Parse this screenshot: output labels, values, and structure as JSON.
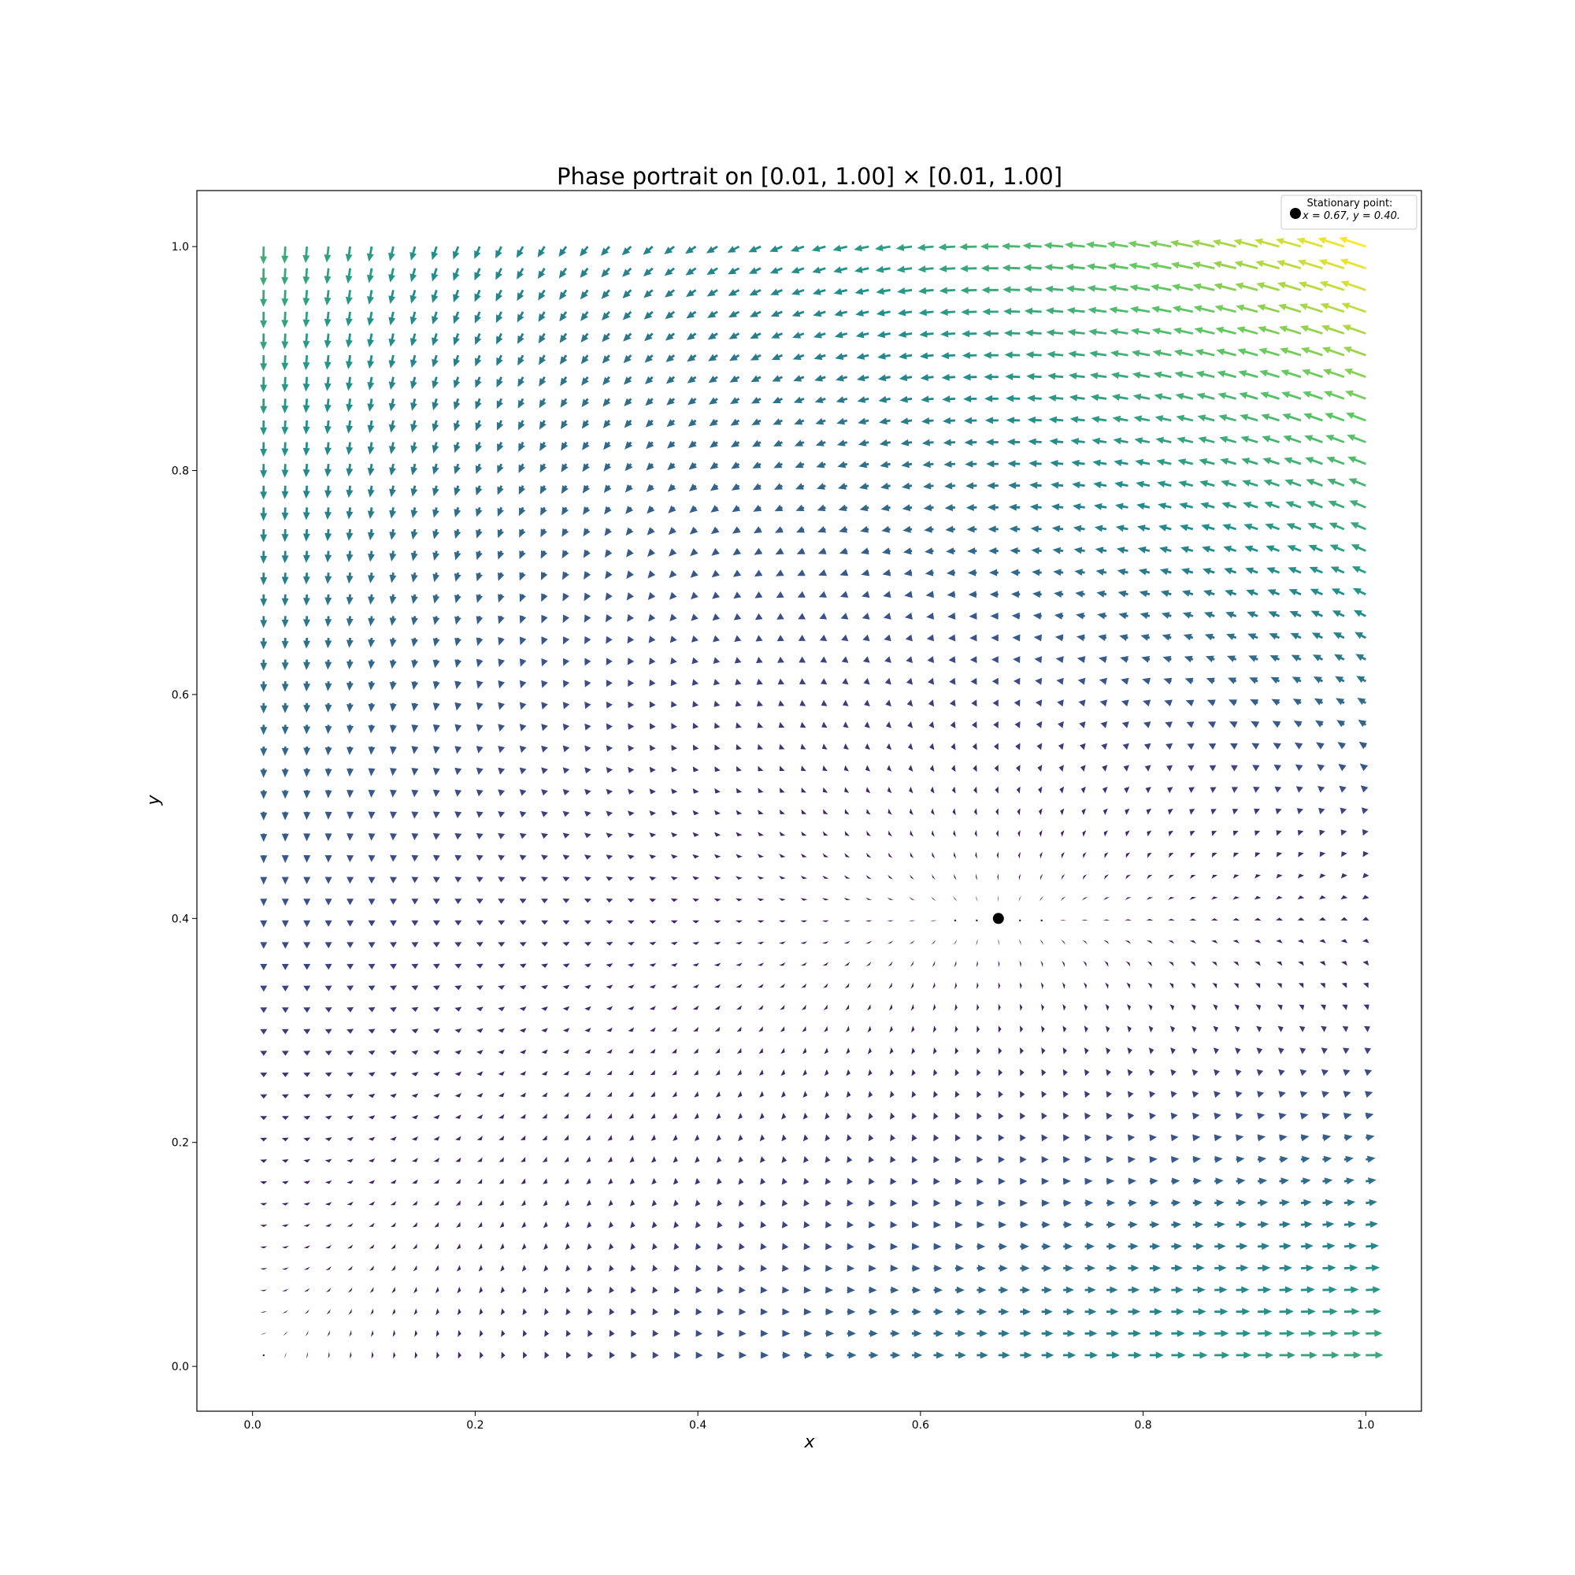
{
  "chart_data": {
    "type": "quiver",
    "title": "Phase portrait on [0.01, 1.00] × [0.01, 1.00]",
    "xlabel": "x",
    "ylabel": "y",
    "xlim": [
      -0.05,
      1.05
    ],
    "ylim": [
      -0.04,
      1.05
    ],
    "xticks": [
      "0.0",
      "0.2",
      "0.4",
      "0.6",
      "0.8",
      "1.0"
    ],
    "yticks": [
      "0.0",
      "0.2",
      "0.4",
      "0.6",
      "0.8",
      "1.0"
    ],
    "grid": false,
    "domain": {
      "x": [
        0.01,
        1.0
      ],
      "y": [
        0.01,
        1.0
      ],
      "n": 52
    },
    "colormap": [
      "#440154",
      "#3b528b",
      "#21918c",
      "#5ec962",
      "#fde725"
    ],
    "stationary_point": {
      "x": 0.67,
      "y": 0.4
    },
    "legend": {
      "position": "upper right",
      "label_line1": "Stationary point:",
      "label_line2": "x = 0.67, y = 0.40."
    }
  }
}
